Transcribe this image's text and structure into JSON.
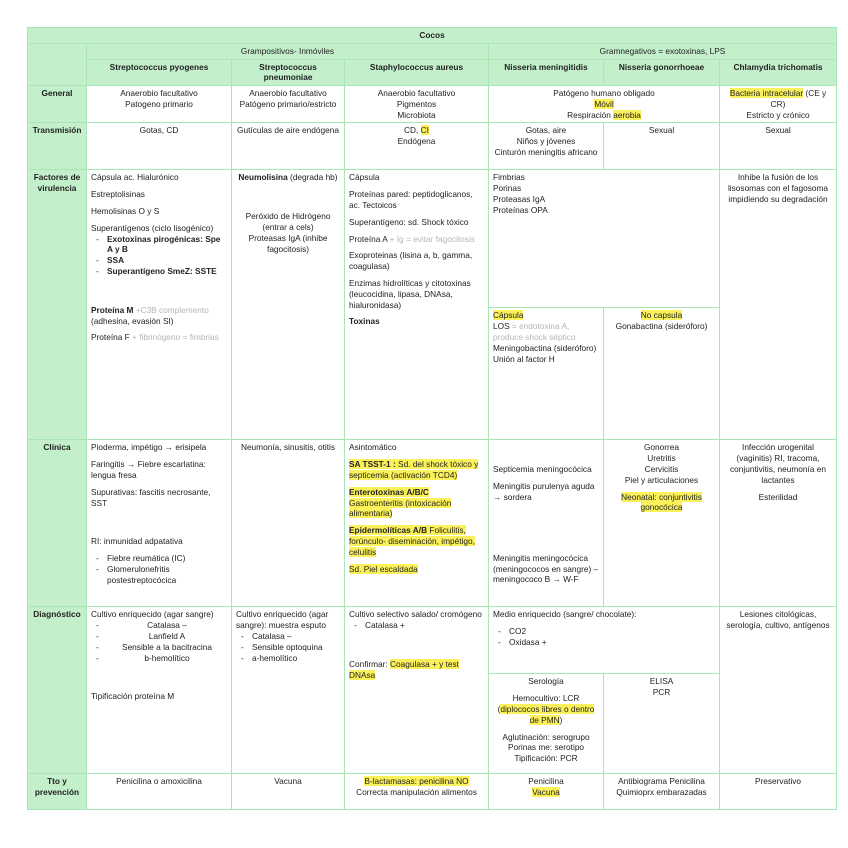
{
  "header": {
    "title": "Cocos",
    "grampositivos": "Grampositivos- Inmóviles",
    "gramnegativos": "Gramnegativos = exotoxinas, LPS",
    "species": [
      "Streptococcus pyogenes",
      "Streptococcus pneumoniae",
      "Staphylococcus aureus",
      "Nisseria meningitidis",
      "Nisseria gonorrhoeae",
      "Chlamydia trichomatis"
    ]
  },
  "rows": [
    "General",
    "Transmisión",
    "Factores de virulencia",
    "Clínica",
    "Diagnóstico",
    "Tto y prevención"
  ],
  "highlight_color": "#fbf15a",
  "header_color": "#c3efcb",
  "cells": {
    "general": {
      "pyogenes": [
        [
          [
            [
              "Anaerobio facultativo"
            ]
          ],
          [
            [
              "Patogeno primario"
            ]
          ]
        ]
      ],
      "pneumoniae": [
        [
          [
            [
              "Anaerobio facultativo"
            ]
          ],
          [
            [
              "Patógeno primario/estricto"
            ]
          ]
        ]
      ],
      "aureus": [
        [
          [
            [
              "Anaerobio facultativo"
            ]
          ],
          [
            [
              "Pigmentos"
            ]
          ],
          [
            [
              "Microbiota"
            ]
          ]
        ]
      ],
      "neisseria": [
        [
          [
            [
              "Patógeno humano obligado"
            ]
          ],
          [
            [
              "Móvil",
              "h"
            ]
          ],
          [
            [
              "Respiración "
            ],
            [
              "aerobia",
              "h"
            ]
          ]
        ]
      ],
      "chlamydia": [
        [
          [
            [
              "Bacteria intracelular",
              "h"
            ],
            [
              " (CE y CR)"
            ]
          ],
          [
            [
              "Estricto y crónico"
            ]
          ]
        ]
      ]
    },
    "transmision": {
      "pyogenes": [
        [
          [
            [
              "Gotas, CD"
            ]
          ]
        ]
      ],
      "pneumoniae": [
        [
          [
            [
              "Gutículas de aire endógena"
            ]
          ]
        ]
      ],
      "aureus": [
        [
          [
            [
              "CD, "
            ],
            [
              "CI",
              "h"
            ]
          ],
          [
            [
              "Endógena"
            ]
          ]
        ]
      ],
      "meningitidis": [
        [
          [
            [
              "Gotas, aire"
            ]
          ],
          [
            [
              "Niños y jóvenes"
            ]
          ],
          [
            [
              "Cinturón meningitis africano"
            ]
          ]
        ]
      ],
      "gonorrhoeae": [
        [
          [
            [
              "Sexual"
            ]
          ]
        ]
      ],
      "chlamydia": [
        [
          [
            [
              "Sexual"
            ]
          ]
        ]
      ]
    },
    "factores": {
      "pyogenes": [
        [
          [
            [
              "Cápsula ac. Hialurónico"
            ]
          ]
        ],
        [
          [
            [
              "Estreptolisinas"
            ]
          ]
        ],
        [
          [
            [
              "Hemolisinas O y S"
            ]
          ]
        ],
        [
          [
            [
              "Superantígenos (ciclo lisogénico)"
            ]
          ],
          {
            "li": [
              [
                "Exotoxinas pirogénicas: Spe A y B",
                "b"
              ]
            ]
          },
          {
            "li": [
              [
                "SSA",
                "b"
              ]
            ]
          },
          {
            "li": [
              [
                "Superantígeno SmeZ: SSTE",
                "b"
              ]
            ]
          }
        ],
        [],
        [
          [
            [
              "Proteína M",
              "b"
            ],
            [
              " +C3B complemento",
              "g"
            ]
          ],
          [
            [
              "(adhesina, evasión SI)"
            ]
          ]
        ],
        [
          [
            [
              "Proteína F"
            ],
            [
              " + fibrinógeno = fimbrias",
              "g"
            ]
          ]
        ]
      ],
      "pneumoniae": [
        [
          [
            [
              "Neumolisina",
              "b"
            ],
            [
              " (degrada hb)"
            ]
          ]
        ],
        [],
        [
          [
            [
              "Peróxido de Hidrógeno (entrar a  cels)"
            ]
          ],
          [
            [
              "Proteasas IgA (inhibe fagocitosis)"
            ]
          ]
        ]
      ],
      "aureus": [
        [
          [
            [
              "Cápsula"
            ]
          ]
        ],
        [
          [
            [
              "Proteínas pared: peptidoglicanos, ac. Tectoicos"
            ]
          ]
        ],
        [
          [
            [
              "Superantígeno: sd. Shock tóxico"
            ]
          ]
        ],
        [
          [
            [
              "Proteína A"
            ],
            [
              " + Ig = evitar fagocitosis",
              "g"
            ]
          ]
        ],
        [
          [
            [
              "Exoproteinas (lisina a, b, gamma, coagulasa)"
            ]
          ]
        ],
        [
          [
            [
              "Enzimas hidrolíticas y citotoxinas (leucocidina, lipasa, DNAsa, hialuronidasa)"
            ]
          ]
        ],
        [
          [
            [
              "Toxinas",
              "b"
            ]
          ]
        ]
      ],
      "neisseria": [
        [
          [
            [
              "Fimbrias"
            ]
          ],
          [
            [
              "Porinas"
            ]
          ],
          [
            [
              "Proteasas IgA"
            ]
          ],
          [
            [
              "Proteínas OPA"
            ]
          ]
        ]
      ],
      "meningitidis": [
        [
          [
            [
              "Cápsula",
              "h"
            ]
          ],
          [
            [
              "LOS"
            ],
            [
              " = endotoxina A, produce shock séptico",
              "g"
            ]
          ],
          [
            [
              "Meningobactina (sideróforo)"
            ]
          ],
          [
            [
              "Unión al factor H"
            ]
          ]
        ]
      ],
      "gonorrhoeae": [
        [
          [
            [
              "No capsula",
              "h"
            ]
          ],
          [
            [
              "Gonabactina (sideróforo)"
            ]
          ]
        ]
      ],
      "chlamydia": [
        [
          [
            [
              "Inhibe la fusión de los lisosomas con el fagosoma impidiendo su degradación"
            ]
          ]
        ]
      ]
    },
    "clinica": {
      "pyogenes": [
        [
          [
            [
              "Pioderma, impétigo → erisipela"
            ]
          ]
        ],
        [
          [
            [
              "Faringitis → Fiebre escarlatina: lengua fresa"
            ]
          ]
        ],
        [
          [
            [
              "Supurativas: fascitis necrosante, SST"
            ]
          ]
        ],
        [],
        [
          [
            [
              "RI: inmunidad adpatativa"
            ]
          ]
        ],
        [
          {
            "li": [
              [
                "Fiebre reumática (IC)"
              ]
            ]
          },
          {
            "li": [
              [
                "Glomerulonefritis postestreptocócica"
              ]
            ]
          }
        ]
      ],
      "pneumoniae": [
        [
          [
            [
              "Neumonía, sinusitis, otitis"
            ]
          ]
        ]
      ],
      "aureus": [
        [
          [
            [
              "Asintomático"
            ]
          ]
        ],
        [
          [
            [
              "SA TSST-1 : ",
              "bh"
            ],
            [
              "Sd. del shock tóxico y septicemia (activación TCD4)",
              "h"
            ]
          ]
        ],
        [
          [
            [
              "Enterotoxinas A/B/C",
              "bh"
            ]
          ],
          [
            [
              "Gastroenteritis (intoxicación alimentaria)",
              "h"
            ]
          ]
        ],
        [
          [
            [
              "Epidermolíticas A/B",
              "bh"
            ],
            [
              " Foliculitis, forúnculo- diseminación, impétigo, celulitis",
              "h"
            ]
          ]
        ],
        [
          [
            [
              "Sd. Piel escaldada",
              "h"
            ]
          ]
        ]
      ],
      "meningitidis": [
        [],
        [
          [
            [
              "Septicemia meningocócica"
            ]
          ]
        ],
        [
          [
            [
              "Meningitis purulenya aguda → sordera"
            ]
          ]
        ],
        [],
        [],
        [
          [
            [
              "Meningitis meningocócica (meningococos en sangre) – meningococo B → W-F"
            ]
          ]
        ]
      ],
      "gonorrhoeae": [
        [
          [
            [
              "Gonorrea"
            ]
          ],
          [
            [
              "Uretritis"
            ]
          ],
          [
            [
              "Cervicitis"
            ]
          ],
          [
            [
              "Piel y articulaciones"
            ]
          ]
        ],
        [
          [
            [
              "Neonatal: conjuntivitis gonocócica",
              "h"
            ]
          ]
        ]
      ],
      "chlamydia": [
        [
          [
            [
              "Infección urogenital (vaginitis) RI, tracoma, conjuntivitis, neumonía en lactantes"
            ]
          ]
        ],
        [
          [
            [
              "Esterilidad"
            ]
          ]
        ]
      ]
    },
    "diagnostico": {
      "pyogenes": [
        [
          [
            [
              "Cultivo enriquecido (agar sangre)"
            ]
          ],
          {
            "li": [
              [
                "Catalasa –"
              ]
            ],
            "c": true
          },
          {
            "li": [
              [
                "Lanfield A"
              ]
            ],
            "c": true
          },
          {
            "li": [
              [
                "Sensible a la bacitracina"
              ]
            ],
            "c": true
          },
          {
            "li": [
              [
                "b-hemolítico"
              ]
            ],
            "c": true
          }
        ],
        [],
        [
          [
            [
              "Tipificación proteína M"
            ]
          ]
        ]
      ],
      "pneumoniae": [
        [
          [
            [
              "Cultivo enriquecido (agar sangre): muestra esputo"
            ]
          ],
          {
            "li": [
              [
                "Catalasa –"
              ]
            ]
          },
          {
            "li": [
              [
                "Sensible optoquina"
              ]
            ]
          },
          {
            "li": [
              [
                "a-hemolítico"
              ]
            ]
          }
        ]
      ],
      "aureus": [
        [
          [
            [
              "Cultivo selectivo salado/ cromógeno"
            ]
          ],
          {
            "li": [
              [
                "Catalasa +"
              ]
            ]
          }
        ],
        [],
        [
          [
            [
              "Confirmar: "
            ],
            [
              "Coagulasa + y test DNAsa",
              "h"
            ]
          ]
        ]
      ],
      "neisseria": [
        [
          [
            [
              "Medio enriquecido (sangre/ chocolate):"
            ]
          ]
        ],
        [
          {
            "li": [
              [
                "CO2"
              ]
            ]
          },
          {
            "li": [
              [
                "Oxidasa +"
              ]
            ]
          }
        ]
      ],
      "meningitidis": [
        [
          [
            [
              "Serología"
            ]
          ]
        ],
        [
          [
            [
              "Hemocultivo: LCR"
            ]
          ],
          [
            [
              "("
            ],
            [
              "diplococos libres o dentro de PMN",
              "h"
            ],
            [
              ")"
            ]
          ]
        ],
        [
          [
            [
              "Aglutinación: serogrupo"
            ]
          ],
          [
            [
              "Porinas me: serotipo"
            ]
          ],
          [
            [
              "Tipificación: PCR"
            ]
          ]
        ]
      ],
      "gonorrhoeae": [
        [
          [
            [
              "ELISA"
            ]
          ],
          [
            [
              "PCR"
            ]
          ]
        ]
      ],
      "chlamydia": [
        [
          [
            [
              "Lesiones citológicas, serología, cultivo, antígenos"
            ]
          ]
        ]
      ]
    },
    "tto": {
      "pyogenes": [
        [
          [
            [
              "Penicilina o amoxicilina"
            ]
          ]
        ]
      ],
      "pneumoniae": [
        [
          [
            [
              "Vacuna"
            ]
          ]
        ]
      ],
      "aureus": [
        [
          [
            [
              "B-lactamasas: penicilina NO",
              "h"
            ]
          ],
          [
            [
              "Correcta manipulación alimentos"
            ]
          ]
        ]
      ],
      "meningitidis": [
        [
          [
            [
              "Penicilina"
            ]
          ],
          [
            [
              "Vacuna",
              "h"
            ]
          ]
        ]
      ],
      "gonorrhoeae": [
        [
          [
            [
              "Antibiograma Penicilina"
            ]
          ],
          [
            [
              "Quimioprx embarazadas"
            ]
          ]
        ]
      ],
      "chlamydia": [
        [
          [
            [
              "Preservativo"
            ]
          ]
        ]
      ]
    }
  }
}
